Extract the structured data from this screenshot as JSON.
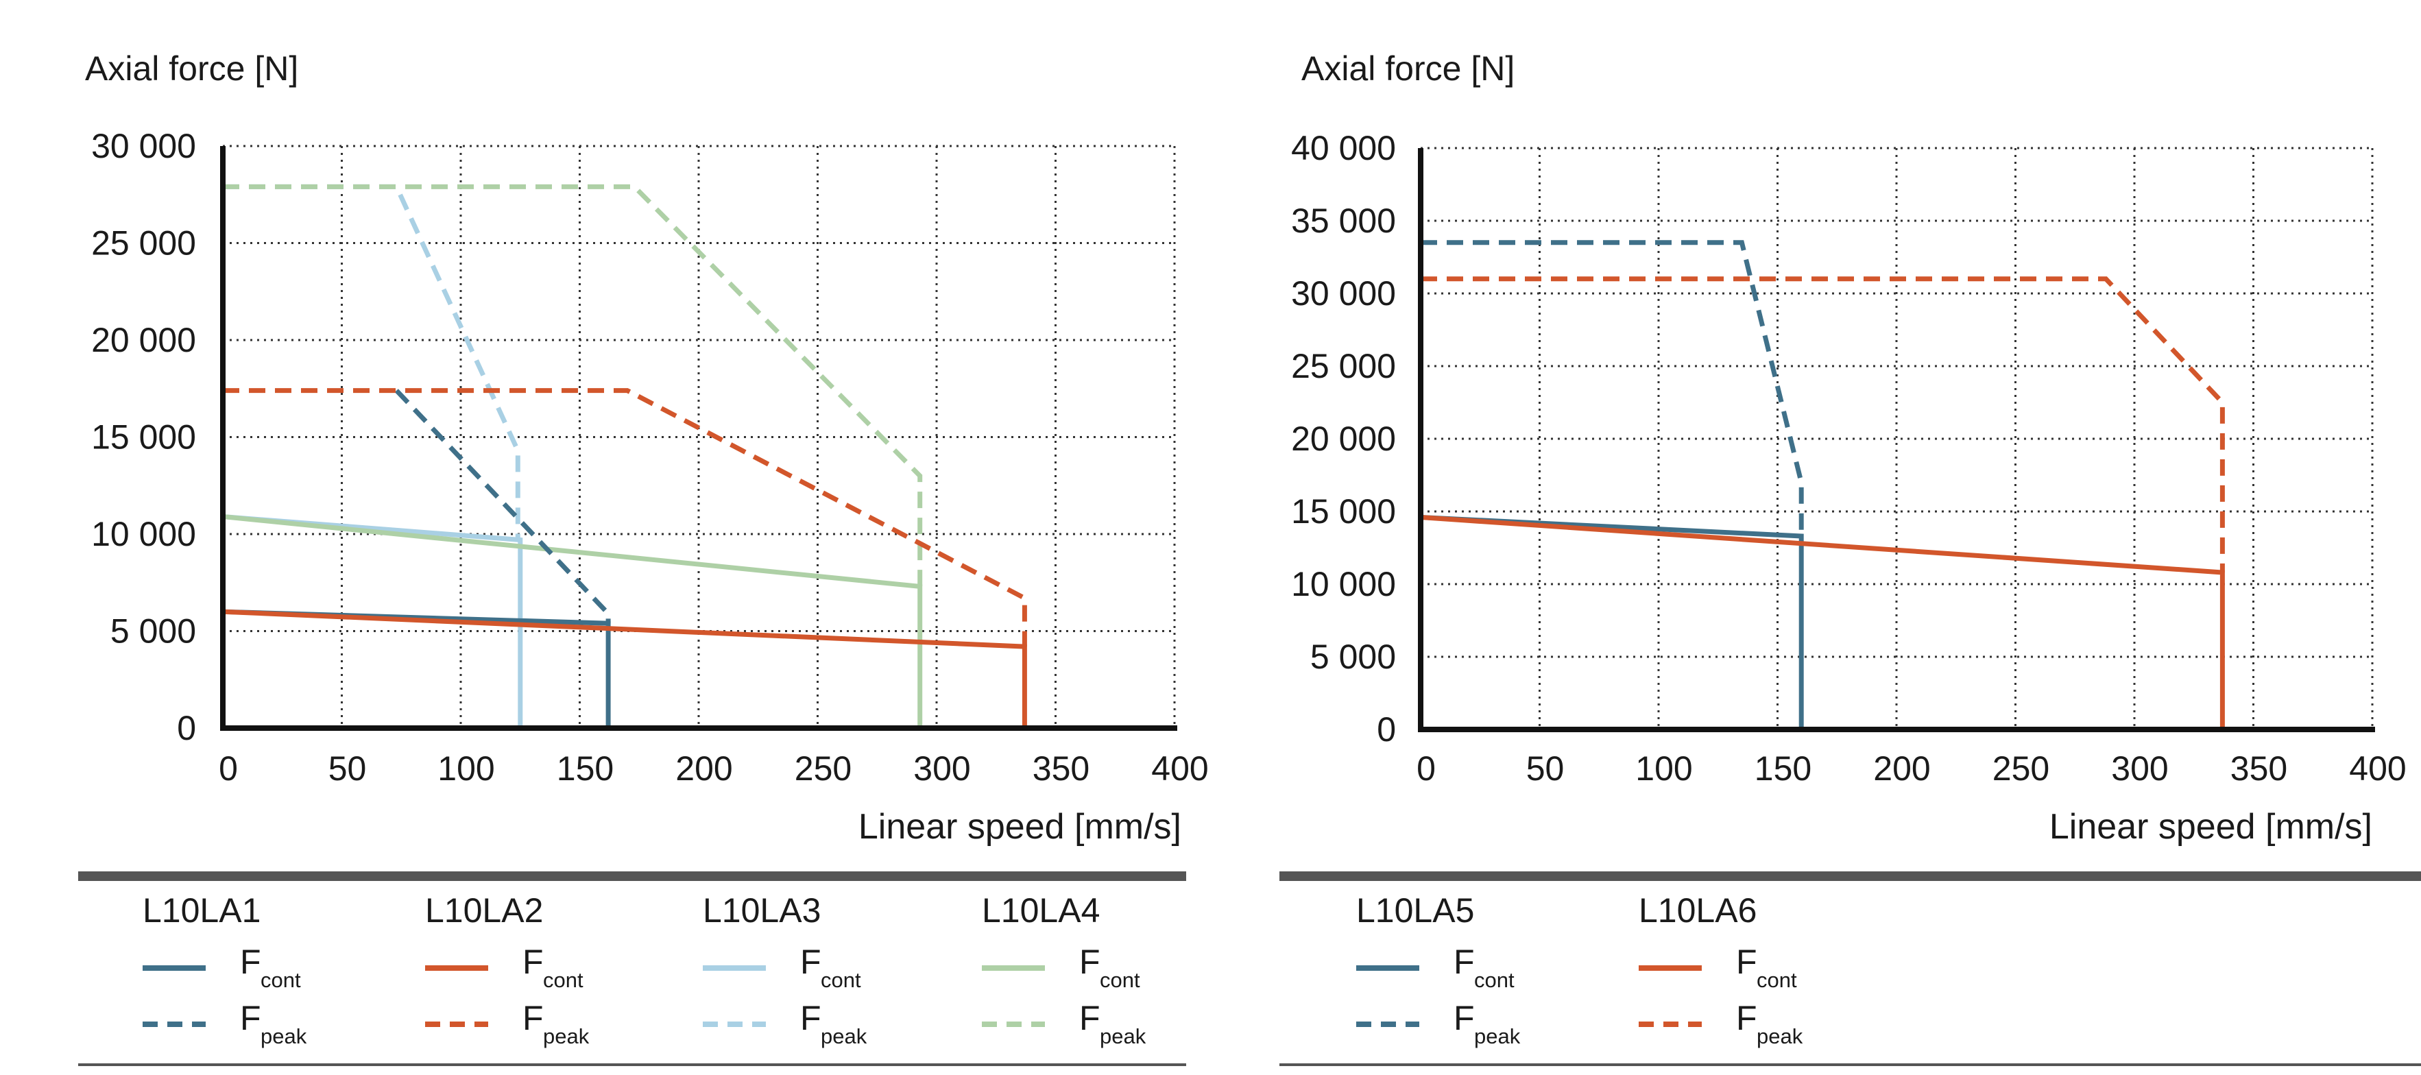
{
  "colors": {
    "dark_blue": "#3f7089",
    "orange": "#d2562b",
    "light_blue": "#a9d0e4",
    "light_green": "#aed0a6",
    "axis": "#111111",
    "grid": "#333333",
    "rule": "#555555"
  },
  "chart_data": [
    {
      "type": "line",
      "ylabel": "Axial force [N]",
      "xlabel": "Linear speed [mm/s]",
      "xlim": [
        0,
        400
      ],
      "ylim": [
        0,
        30000
      ],
      "grid": true,
      "x_ticks": [
        0,
        50,
        100,
        150,
        200,
        250,
        300,
        350,
        400
      ],
      "x_tick_labels": [
        "0",
        "50",
        "100",
        "150",
        "200",
        "250",
        "300",
        "350",
        "400"
      ],
      "y_ticks": [
        0,
        5000,
        10000,
        15000,
        20000,
        25000,
        30000
      ],
      "y_tick_labels": [
        "0",
        "5 000",
        "10 000",
        "15 000",
        "20 000",
        "25 000",
        "30 000"
      ],
      "series": [
        {
          "name": "L10LA3 Fcont",
          "model": "L10LA3",
          "kind": "cont",
          "color": "light_blue",
          "x": [
            0,
            125,
            125
          ],
          "y": [
            10900,
            9700,
            0
          ]
        },
        {
          "name": "L10LA4 Fcont",
          "model": "L10LA4",
          "kind": "cont",
          "color": "light_green",
          "x": [
            0,
            293,
            293
          ],
          "y": [
            10900,
            7300,
            0
          ]
        },
        {
          "name": "L10LA3 Fpeak",
          "model": "L10LA3",
          "kind": "peak",
          "color": "light_blue",
          "x": [
            0,
            73,
            124,
            124
          ],
          "y": [
            27900,
            27900,
            14300,
            9700
          ]
        },
        {
          "name": "L10LA4 Fpeak",
          "model": "L10LA4",
          "kind": "peak",
          "color": "light_green",
          "x": [
            0,
            173,
            293,
            293
          ],
          "y": [
            27900,
            27900,
            13000,
            7300
          ]
        },
        {
          "name": "L10LA1 Fcont",
          "model": "L10LA1",
          "kind": "cont",
          "color": "dark_blue",
          "x": [
            0,
            162,
            162
          ],
          "y": [
            6000,
            5400,
            0
          ]
        },
        {
          "name": "L10LA1 Fpeak",
          "model": "L10LA1",
          "kind": "peak",
          "color": "dark_blue",
          "x": [
            73,
            162,
            162
          ],
          "y": [
            17400,
            5900,
            5400
          ]
        },
        {
          "name": "L10LA2 Fcont",
          "model": "L10LA2",
          "kind": "cont",
          "color": "orange",
          "x": [
            0,
            337,
            337
          ],
          "y": [
            6000,
            4200,
            0
          ]
        },
        {
          "name": "L10LA2 Fpeak",
          "model": "L10LA2",
          "kind": "peak",
          "color": "orange",
          "x": [
            0,
            170,
            337,
            337
          ],
          "y": [
            17400,
            17400,
            6700,
            4200
          ]
        }
      ],
      "legend": {
        "placement": "bottom",
        "groups": [
          {
            "title": "L10LA1",
            "color": "dark_blue",
            "cont_main": "F",
            "cont_sub": "cont",
            "peak_main": "F",
            "peak_sub": "peak"
          },
          {
            "title": "L10LA2",
            "color": "orange",
            "cont_main": "F",
            "cont_sub": "cont",
            "peak_main": "F",
            "peak_sub": "peak"
          },
          {
            "title": "L10LA3",
            "color": "light_blue",
            "cont_main": "F",
            "cont_sub": "cont",
            "peak_main": "F",
            "peak_sub": "peak"
          },
          {
            "title": "L10LA4",
            "color": "light_green",
            "cont_main": "F",
            "cont_sub": "cont",
            "peak_main": "F",
            "peak_sub": "peak"
          }
        ]
      }
    },
    {
      "type": "line",
      "ylabel": "Axial force [N]",
      "xlabel": "Linear speed [mm/s]",
      "xlim": [
        0,
        400
      ],
      "ylim": [
        0,
        40000
      ],
      "grid": true,
      "x_ticks": [
        0,
        50,
        100,
        150,
        200,
        250,
        300,
        350,
        400
      ],
      "x_tick_labels": [
        "0",
        "50",
        "100",
        "150",
        "200",
        "250",
        "300",
        "350",
        "400"
      ],
      "y_ticks": [
        0,
        5000,
        10000,
        15000,
        20000,
        25000,
        30000,
        35000,
        40000
      ],
      "y_tick_labels": [
        "0",
        "5 000",
        "10 000",
        "15 000",
        "20 000",
        "25 000",
        "30 000",
        "35 000",
        "40 000"
      ],
      "series": [
        {
          "name": "L10LA5 Fcont",
          "model": "L10LA5",
          "kind": "cont",
          "color": "dark_blue",
          "x": [
            0,
            160,
            160
          ],
          "y": [
            14600,
            13300,
            0
          ]
        },
        {
          "name": "L10LA5 Fpeak",
          "model": "L10LA5",
          "kind": "peak",
          "color": "dark_blue",
          "x": [
            0,
            135,
            160,
            160
          ],
          "y": [
            33500,
            33500,
            17000,
            13300
          ]
        },
        {
          "name": "L10LA6 Fcont",
          "model": "L10LA6",
          "kind": "cont",
          "color": "orange",
          "x": [
            0,
            337,
            337
          ],
          "y": [
            14600,
            10800,
            0
          ]
        },
        {
          "name": "L10LA6 Fpeak",
          "model": "L10LA6",
          "kind": "peak",
          "color": "orange",
          "x": [
            0,
            288,
            337,
            337
          ],
          "y": [
            31000,
            31000,
            22500,
            10800
          ]
        }
      ],
      "legend": {
        "placement": "bottom",
        "groups": [
          {
            "title": "L10LA5",
            "color": "dark_blue",
            "cont_main": "F",
            "cont_sub": "cont",
            "peak_main": "F",
            "peak_sub": "peak"
          },
          {
            "title": "L10LA6",
            "color": "orange",
            "cont_main": "F",
            "cont_sub": "cont",
            "peak_main": "F",
            "peak_sub": "peak"
          }
        ]
      }
    }
  ]
}
